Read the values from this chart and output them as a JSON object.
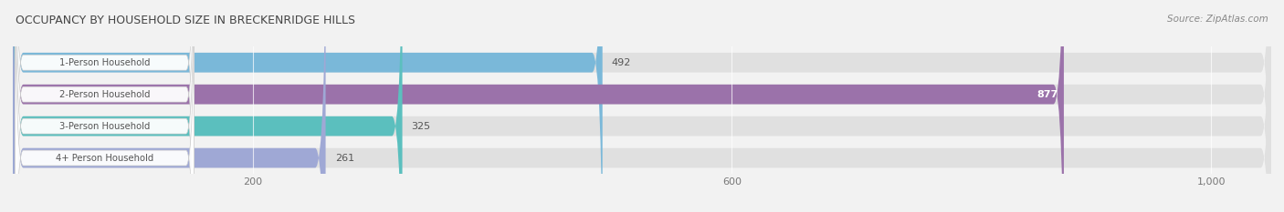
{
  "title": "OCCUPANCY BY HOUSEHOLD SIZE IN BRECKENRIDGE HILLS",
  "source": "Source: ZipAtlas.com",
  "categories": [
    "1-Person Household",
    "2-Person Household",
    "3-Person Household",
    "4+ Person Household"
  ],
  "values": [
    492,
    877,
    325,
    261
  ],
  "bar_colors": [
    "#7ab8d9",
    "#9b72aa",
    "#5bbfbe",
    "#9fa8d5"
  ],
  "xlim": [
    0,
    1050
  ],
  "xticks": [
    200,
    600,
    1000
  ],
  "xtick_labels": [
    "200",
    "600",
    "1,000"
  ],
  "value_label_inside": [
    false,
    true,
    false,
    false
  ],
  "background_color": "#f2f2f2",
  "bar_bg_color": "#e0e0e0",
  "figsize": [
    14.06,
    2.33
  ],
  "dpi": 100
}
